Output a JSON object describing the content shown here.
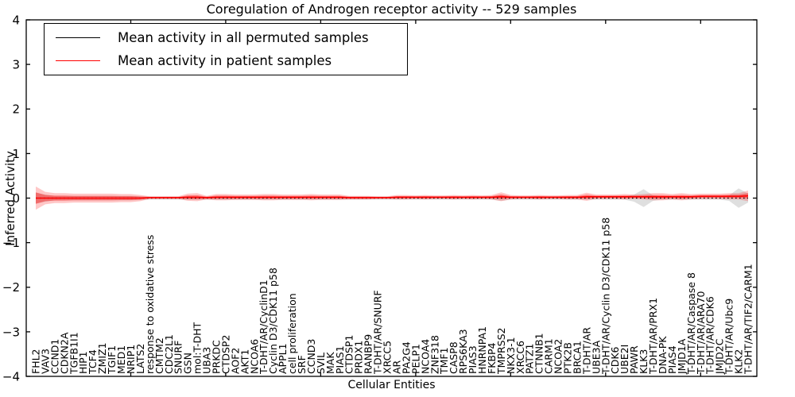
{
  "figure": {
    "title": "Coregulation of Androgen receptor activity -- 529 samples",
    "xlabel": "Cellular Entities",
    "ylabel": "Inferred Activity"
  },
  "legend": {
    "position": "upper left",
    "items": [
      {
        "label": "Mean activity in all permuted samples",
        "color": "#000000"
      },
      {
        "label": "Mean activity in patient samples",
        "color": "#ff0000"
      }
    ]
  },
  "chart_data": {
    "type": "line",
    "title": "Coregulation of Androgen receptor activity -- 529 samples",
    "xlabel": "Cellular Entities",
    "ylabel": "Inferred Activity",
    "ylim": [
      -4,
      4
    ],
    "yticks": [
      4,
      3,
      2,
      1,
      0,
      -1,
      -2,
      -3,
      -4
    ],
    "grid": false,
    "legend_position": "upper left",
    "top_tick_indices": [
      10,
      20,
      30,
      40,
      50,
      60,
      70
    ],
    "categories": [
      "FHL2",
      "VAV3",
      "CCND1",
      "CDKN2A",
      "TGFB1I1",
      "HIP1",
      "TCF4",
      "ZMIZ1",
      "TGIF1",
      "MED1",
      "NRIP1",
      "LATS2",
      "response to oxidative stress",
      "CMTM2",
      "CDC2L1",
      "SNURF",
      "GSN",
      "mol:T-DHT",
      "UBA3",
      "PRKDC",
      "CTDSP2",
      "AOF2",
      "AKT1",
      "NCOA6",
      "T-DHT/AR/CyclinD1",
      "Cyclin D3/CDK11 p58",
      "APPL1",
      "cell proliferation",
      "SRF",
      "CCND3",
      "SVIL",
      "MAK",
      "PIAS1",
      "CTDSP1",
      "PRDX1",
      "RANBP9",
      "T-DHT/AR/SNURF",
      "XRCC5",
      "AR",
      "PA2G4",
      "PELP1",
      "NCOA4",
      "ZNF318",
      "TMF1",
      "CASP8",
      "RPS6KA3",
      "PIAS3",
      "HNRNPA1",
      "FKBP4",
      "TMPRSS2",
      "NKX3-1",
      "XRCC6",
      "PATZ1",
      "CTNNB1",
      "CARM1",
      "NCOA2",
      "PTK2B",
      "BRCA1",
      "T-DHT/AR",
      "UBE3A",
      "T-DHT/AR/Cyclin D3/CDK11 p58",
      "CDK6",
      "UBE2I",
      "PAWR",
      "KLK3",
      "T-DHT/AR/PRX1",
      "DNA-PK",
      "PIAS4",
      "JMJD1A",
      "T-DHT/AR/Caspase 8",
      "T-DHT/AR/ARA70",
      "T-DHT/AR/CDK6",
      "JMJD2C",
      "T-DHT/AR/Ubc9",
      "KLK2",
      "T-DHT/AR/TIF2/CARM1"
    ],
    "series": [
      {
        "name": "Mean activity in all permuted samples",
        "color": "#000000",
        "line_style": "dotted",
        "band_color": "rgba(80,80,80,0.18)",
        "values": [
          0,
          0,
          0,
          0,
          0,
          0,
          0,
          0,
          0,
          0,
          0,
          0,
          0,
          0,
          0,
          0,
          0,
          0,
          0,
          0,
          0,
          0,
          0,
          0,
          0,
          0,
          0,
          0,
          0,
          0,
          0,
          0,
          0,
          0,
          0,
          0,
          0,
          0,
          0,
          0,
          0,
          0,
          0,
          0,
          0,
          0,
          0,
          0,
          0,
          0,
          0,
          0,
          0,
          0,
          0,
          0,
          0,
          0,
          0,
          0,
          0,
          0,
          0,
          0,
          0,
          0,
          0,
          0,
          0,
          0,
          0,
          0,
          0,
          0,
          0,
          0
        ],
        "std": [
          0.12,
          0.08,
          0.05,
          0.05,
          0.05,
          0.05,
          0.05,
          0.05,
          0.05,
          0.05,
          0.05,
          0.04,
          0.035,
          0.035,
          0.035,
          0.035,
          0.035,
          0.035,
          0.035,
          0.035,
          0.035,
          0.035,
          0.035,
          0.035,
          0.035,
          0.035,
          0.035,
          0.035,
          0.035,
          0.035,
          0.035,
          0.035,
          0.035,
          0.035,
          0.035,
          0.035,
          0.035,
          0.035,
          0.035,
          0.035,
          0.035,
          0.035,
          0.035,
          0.035,
          0.035,
          0.035,
          0.035,
          0.035,
          0.035,
          0.06,
          0.035,
          0.035,
          0.035,
          0.035,
          0.035,
          0.035,
          0.035,
          0.035,
          0.035,
          0.035,
          0.035,
          0.035,
          0.035,
          0.08,
          0.2,
          0.06,
          0.035,
          0.035,
          0.035,
          0.035,
          0.035,
          0.035,
          0.035,
          0.06,
          0.22,
          0.1
        ]
      },
      {
        "name": "Mean activity in patient samples",
        "color": "#ff0000",
        "line_style": "solid",
        "band_color": "rgba(255,0,0,0.22)",
        "inner_band_color": "rgba(255,0,0,0.38)",
        "values": [
          0,
          0,
          0,
          0,
          0,
          0,
          0,
          0,
          0,
          0,
          0,
          0,
          0.01,
          0.01,
          0.01,
          0.01,
          0.02,
          0.02,
          0.01,
          0.02,
          0.02,
          0.02,
          0.02,
          0.02,
          0.02,
          0.02,
          0.02,
          0.02,
          0.02,
          0.02,
          0.02,
          0.02,
          0.02,
          0.01,
          0.01,
          0.01,
          0.01,
          0.01,
          0.02,
          0.02,
          0.02,
          0.02,
          0.02,
          0.02,
          0.02,
          0.02,
          0.02,
          0.02,
          0.02,
          0.03,
          0.02,
          0.02,
          0.02,
          0.02,
          0.02,
          0.02,
          0.02,
          0.02,
          0.03,
          0.03,
          0.03,
          0.03,
          0.03,
          0.03,
          0.03,
          0.03,
          0.03,
          0.03,
          0.03,
          0.03,
          0.04,
          0.04,
          0.04,
          0.04,
          0.04,
          0.05
        ],
        "std": [
          0.26,
          0.14,
          0.11,
          0.11,
          0.1,
          0.1,
          0.1,
          0.1,
          0.1,
          0.09,
          0.09,
          0.07,
          0.03,
          0.03,
          0.03,
          0.03,
          0.08,
          0.09,
          0.04,
          0.07,
          0.07,
          0.06,
          0.06,
          0.06,
          0.07,
          0.07,
          0.06,
          0.06,
          0.06,
          0.07,
          0.06,
          0.06,
          0.06,
          0.04,
          0.04,
          0.04,
          0.03,
          0.03,
          0.05,
          0.05,
          0.04,
          0.05,
          0.04,
          0.04,
          0.05,
          0.04,
          0.05,
          0.04,
          0.05,
          0.1,
          0.05,
          0.04,
          0.04,
          0.05,
          0.04,
          0.04,
          0.05,
          0.05,
          0.09,
          0.05,
          0.05,
          0.05,
          0.06,
          0.05,
          0.06,
          0.08,
          0.08,
          0.06,
          0.08,
          0.06,
          0.06,
          0.06,
          0.06,
          0.07,
          0.07,
          0.12
        ]
      }
    ]
  }
}
